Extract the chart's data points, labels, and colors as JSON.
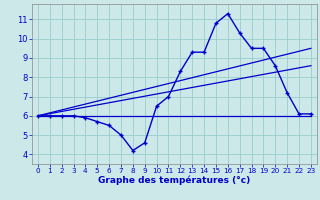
{
  "xlabel": "Graphe des températures (°c)",
  "background_color": "#cce8e8",
  "grid_color": "#99cccc",
  "line_color": "#0000cc",
  "xlim": [
    -0.5,
    23.5
  ],
  "ylim": [
    3.5,
    11.8
  ],
  "xticks": [
    0,
    1,
    2,
    3,
    4,
    5,
    6,
    7,
    8,
    9,
    10,
    11,
    12,
    13,
    14,
    15,
    16,
    17,
    18,
    19,
    20,
    21,
    22,
    23
  ],
  "yticks": [
    4,
    5,
    6,
    7,
    8,
    9,
    10,
    11
  ],
  "series_main": {
    "x": [
      0,
      1,
      2,
      3,
      4,
      5,
      6,
      7,
      8,
      9,
      10,
      11,
      12,
      13,
      14,
      15,
      16,
      17,
      18,
      19,
      20,
      21,
      22,
      23
    ],
    "y": [
      6.0,
      6.0,
      6.0,
      6.0,
      5.9,
      5.7,
      5.5,
      5.0,
      4.2,
      4.6,
      6.5,
      7.0,
      8.3,
      9.3,
      9.3,
      10.8,
      11.3,
      10.3,
      9.5,
      9.5,
      8.6,
      7.2,
      6.1,
      6.1
    ]
  },
  "line1": {
    "x": [
      0,
      23
    ],
    "y": [
      6.0,
      6.0
    ]
  },
  "line2": {
    "x": [
      0,
      23
    ],
    "y": [
      6.0,
      9.5
    ]
  },
  "line3": {
    "x": [
      0,
      23
    ],
    "y": [
      6.0,
      8.6
    ]
  }
}
